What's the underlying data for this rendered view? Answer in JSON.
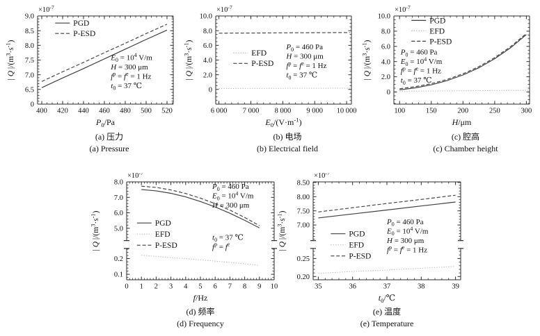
{
  "figure": {
    "background": "#ffffff",
    "colors": {
      "line_dark": "#3f3f3f",
      "line_light": "#b3b3b3",
      "axis": "#2b2b2b",
      "text": "#111111"
    }
  },
  "chart_data": [
    {
      "id": "a",
      "type": "line",
      "caption_cn": "(a) 压力",
      "caption_en": "(a) Pressure",
      "xlabel": "*P*_{0}/Pa",
      "ylabel": "| *Q* |/(m^{3}·s^{-1})",
      "scale_label": "×10^{-7}",
      "xlim": [
        396,
        526
      ],
      "xminor": 5,
      "xticks": [
        {
          "label": "400",
          "v": 400
        },
        {
          "label": "420",
          "v": 420
        },
        {
          "label": "440",
          "v": 440
        },
        {
          "label": "460",
          "v": 460
        },
        {
          "label": "480",
          "v": 480
        },
        {
          "label": "500",
          "v": 500
        },
        {
          "label": "520",
          "v": 520
        }
      ],
      "panels": [
        {
          "vlim": [
            6.0,
            9.0
          ],
          "minor": 0.1,
          "frac": [
            0,
            1
          ],
          "ticks": [
            {
              "label": "0",
              "v": 6.0
            },
            {
              "label": "6.5",
              "v": 6.5
            },
            {
              "label": "7.0",
              "v": 7.0
            },
            {
              "label": "7.5",
              "v": 7.5
            },
            {
              "label": "8.0",
              "v": 8.0
            },
            {
              "label": "8.5",
              "v": 8.5
            },
            {
              "label": "9.0",
              "v": 9.0
            }
          ]
        }
      ],
      "series": [
        {
          "name": "PGD",
          "style": "solid",
          "color": "#3f3f3f",
          "panel": 0,
          "x": [
            400,
            420,
            440,
            460,
            480,
            500,
            520
          ],
          "y": [
            6.56,
            6.89,
            7.21,
            7.54,
            7.87,
            8.2,
            8.52
          ]
        },
        {
          "name": "P-ESD",
          "style": "dashed",
          "color": "#3f3f3f",
          "panel": 0,
          "x": [
            400,
            420,
            440,
            460,
            480,
            500,
            520
          ],
          "y": [
            6.77,
            7.1,
            7.42,
            7.75,
            8.07,
            8.4,
            8.72
          ]
        }
      ],
      "legend": {
        "entries": [
          "PGD",
          "P-ESD"
        ],
        "pos": [
          0.13,
          0.08
        ]
      },
      "annotations": [
        {
          "pos": [
            0.54,
            0.42
          ],
          "lines": [
            "*E*_{0} = 10^{4} V/m",
            "*H* = 300 μm",
            "*f*^{p} = *f*^{e} = 1 Hz",
            "*t*_{0} = 37 ℃"
          ]
        }
      ]
    },
    {
      "id": "b",
      "type": "line",
      "caption_cn": "(b) 电场",
      "caption_en": "(b) Electrical field",
      "xlabel": "*E*_{0}/(V·m^{-1})",
      "ylabel": "| *Q* |/(m^{3}·s^{-1})",
      "scale_label": "×10^{-7}",
      "xlim": [
        5900,
        10150
      ],
      "xminor": 200,
      "xticks": [
        {
          "label": "6 000",
          "v": 6000
        },
        {
          "label": "7 000",
          "v": 7000
        },
        {
          "label": "8 000",
          "v": 8000
        },
        {
          "label": "9 000",
          "v": 9000
        },
        {
          "label": "10 000",
          "v": 10000
        }
      ],
      "panels": [
        {
          "vlim": [
            -2.0,
            10.0
          ],
          "minor": 0.5,
          "frac": [
            0,
            1
          ],
          "ticks": [
            {
              "label": "0",
              "v": 0
            },
            {
              "label": "2.0",
              "v": 2
            },
            {
              "label": "4.0",
              "v": 4
            },
            {
              "label": "6.0",
              "v": 6
            },
            {
              "label": "8.0",
              "v": 8
            },
            {
              "label": "10.0",
              "v": 10
            }
          ]
        }
      ],
      "series": [
        {
          "name": "EFD",
          "style": "dotted",
          "color": "#b3b3b3",
          "panel": 0,
          "x": [
            6000,
            7000,
            8000,
            9000,
            10100
          ],
          "y": [
            0.13,
            0.14,
            0.15,
            0.16,
            0.17
          ]
        },
        {
          "name": "P-ESD",
          "style": "dashed",
          "color": "#3f3f3f",
          "panel": 0,
          "x": [
            6000,
            7000,
            8000,
            9000,
            10100
          ],
          "y": [
            7.66,
            7.68,
            7.7,
            7.72,
            7.74
          ]
        }
      ],
      "legend": {
        "entries": [
          "EFD",
          "P-ESD"
        ],
        "pos": [
          0.13,
          0.42
        ]
      },
      "annotations": [
        {
          "pos": [
            0.52,
            0.3
          ],
          "lines": [
            "*P*_{0} = 460 Pa",
            "*H* = 300 μm",
            "*f*^{p} = *f*^{e} = 1 Hz",
            "*t*_{0} = 37 ℃"
          ]
        }
      ]
    },
    {
      "id": "c",
      "type": "line",
      "caption_cn": "(c) 腔高",
      "caption_en": "(c) Chamber height",
      "xlabel": "*H*/μm",
      "ylabel": "| *Q* |/(m^{3}·s^{-1})",
      "scale_label": "×10^{-7}",
      "xlim": [
        91,
        305
      ],
      "xminor": 10,
      "xticks": [
        {
          "label": "100",
          "v": 100
        },
        {
          "label": "150",
          "v": 150
        },
        {
          "label": "200",
          "v": 200
        },
        {
          "label": "250",
          "v": 250
        },
        {
          "label": "300",
          "v": 300
        }
      ],
      "panels": [
        {
          "vlim": [
            -1.6,
            10.0
          ],
          "minor": 0.5,
          "frac": [
            0,
            1
          ],
          "ticks": [
            {
              "label": "0",
              "v": 0
            },
            {
              "label": "2.0",
              "v": 2
            },
            {
              "label": "4.0",
              "v": 4
            },
            {
              "label": "6.0",
              "v": 6
            },
            {
              "label": "8.0",
              "v": 8
            },
            {
              "label": "10.0",
              "v": 10
            }
          ]
        }
      ],
      "series": [
        {
          "name": "PGD",
          "style": "solid",
          "color": "#3f3f3f",
          "panel": 0,
          "x": [
            100,
            125,
            150,
            175,
            200,
            225,
            250,
            275,
            300
          ],
          "y": [
            0.28,
            0.55,
            0.94,
            1.5,
            2.24,
            3.18,
            4.37,
            5.81,
            7.55
          ]
        },
        {
          "name": "EFD",
          "style": "dotted",
          "color": "#b3b3b3",
          "panel": 0,
          "x": [
            100,
            150,
            200,
            250,
            304
          ],
          "y": [
            0.1,
            0.13,
            0.16,
            0.19,
            0.22
          ]
        },
        {
          "name": "P-ESD",
          "style": "dashed",
          "color": "#3f3f3f",
          "panel": 0,
          "x": [
            100,
            125,
            150,
            175,
            200,
            225,
            250,
            275,
            300
          ],
          "y": [
            0.43,
            0.7,
            1.09,
            1.65,
            2.39,
            3.33,
            4.52,
            5.96,
            7.7
          ]
        }
      ],
      "legend": {
        "entries": [
          "PGD",
          "EFD",
          "P-ESD"
        ],
        "pos": [
          0.13,
          0.05
        ]
      },
      "annotations": [
        {
          "pos": [
            0.05,
            0.36
          ],
          "lines": [
            "*P*_{0} = 460 Pa",
            "*E*_{0} = 10^{4} V/m",
            "*f*^{p} = *f*^{e} = 1 Hz",
            "*t*_{0} = 37 ℃"
          ]
        }
      ]
    },
    {
      "id": "d",
      "type": "line",
      "caption_cn": "(d) 频率",
      "caption_en": "(d) Frequency",
      "xlabel": "*f*/Hz",
      "ylabel": "| *Q* |/(m^{3}·s^{-1})",
      "scale_label": "×10^{-7}",
      "xlim": [
        0,
        10
      ],
      "xminor": 0.2,
      "xticks": [
        {
          "label": "0",
          "v": 0
        },
        {
          "label": "1",
          "v": 1
        },
        {
          "label": "2",
          "v": 2
        },
        {
          "label": "3",
          "v": 3
        },
        {
          "label": "4",
          "v": 4
        },
        {
          "label": "5",
          "v": 5
        },
        {
          "label": "6",
          "v": 6
        },
        {
          "label": "7",
          "v": 7
        },
        {
          "label": "8",
          "v": 8
        },
        {
          "label": "9",
          "v": 9
        },
        {
          "label": "10",
          "v": 10
        }
      ],
      "panels": [
        {
          "vlim": [
            4.2,
            8.0
          ],
          "minor": 0.2,
          "frac": [
            0,
            0.6
          ],
          "ticks": [
            {
              "label": "5.0",
              "v": 5
            },
            {
              "label": "6.0",
              "v": 6
            },
            {
              "label": "7.0",
              "v": 7
            },
            {
              "label": "8.0",
              "v": 8
            }
          ]
        },
        {
          "vlim": [
            0.065,
            0.265
          ],
          "minor": 0.02,
          "frac": [
            0.68,
            1
          ],
          "ticks": [
            {
              "label": "0.1",
              "v": 0.1
            },
            {
              "label": "0.2",
              "v": 0.2
            }
          ]
        }
      ],
      "series": [
        {
          "name": "PGD",
          "style": "solid",
          "color": "#3f3f3f",
          "panel": 0,
          "x": [
            1,
            2,
            3,
            4,
            5,
            6,
            7,
            8,
            9
          ],
          "y": [
            7.5,
            7.42,
            7.26,
            7.03,
            6.73,
            6.38,
            5.97,
            5.51,
            5.02
          ]
        },
        {
          "name": "P-ESD",
          "style": "dashed",
          "color": "#3f3f3f",
          "panel": 0,
          "x": [
            1,
            2,
            3,
            4,
            5,
            6,
            7,
            8,
            9
          ],
          "y": [
            7.72,
            7.64,
            7.48,
            7.25,
            6.95,
            6.59,
            6.17,
            5.7,
            5.17
          ]
        },
        {
          "name": "EFD",
          "style": "dotted",
          "color": "#b3b3b3",
          "panel": 1,
          "x": [
            1,
            2,
            3,
            4,
            5,
            6,
            7,
            8,
            9
          ],
          "y": [
            0.222,
            0.214,
            0.207,
            0.2,
            0.192,
            0.184,
            0.176,
            0.167,
            0.157
          ]
        }
      ],
      "legend": {
        "entries": [
          "PGD",
          "EFD",
          "P-ESD"
        ],
        "pos": [
          0.07,
          0.42
        ]
      },
      "annotations": [
        {
          "pos": [
            0.58,
            0.0
          ],
          "lines": [
            "*P*_{0} = 460 Pa",
            "*E*_{0} = 10^{4} V/m",
            "*H* = 300 μm"
          ]
        },
        {
          "pos": [
            0.58,
            0.52
          ],
          "lines": [
            "*t*_{0} = 37 ℃",
            "*f*^{p} = *f*^{e}"
          ]
        }
      ]
    },
    {
      "id": "e",
      "type": "line",
      "caption_cn": "(e) 温度",
      "caption_en": "(e) Temperature",
      "xlabel": "*t*_{0}/℃",
      "ylabel": "| *Q* |/(m^{3}·s^{-1})",
      "scale_label": "×10^{-7}",
      "xlim": [
        34.85,
        39.15
      ],
      "xminor": 0.2,
      "xticks": [
        {
          "label": "35",
          "v": 35
        },
        {
          "label": "36",
          "v": 36
        },
        {
          "label": "37",
          "v": 37
        },
        {
          "label": "38",
          "v": 38
        },
        {
          "label": "39",
          "v": 39
        }
      ],
      "panels": [
        {
          "vlim": [
            6.45,
            8.52
          ],
          "minor": 0.1,
          "frac": [
            0,
            0.6
          ],
          "ticks": [
            {
              "label": "7.00",
              "v": 7.0
            },
            {
              "label": "7.50",
              "v": 7.5
            },
            {
              "label": "8.00",
              "v": 8.0
            },
            {
              "label": "8.50",
              "v": 8.5
            }
          ]
        },
        {
          "vlim": [
            0.191,
            0.278
          ],
          "minor": 0.01,
          "frac": [
            0.68,
            1
          ],
          "ticks": [
            {
              "label": "0.20",
              "v": 0.2
            },
            {
              "label": "0.25",
              "v": 0.25
            }
          ]
        }
      ],
      "series": [
        {
          "name": "PGD",
          "style": "solid",
          "color": "#3f3f3f",
          "panel": 0,
          "x": [
            35,
            36,
            37,
            38,
            39
          ],
          "y": [
            7.25,
            7.39,
            7.53,
            7.67,
            7.81
          ]
        },
        {
          "name": "P-ESD",
          "style": "dashed",
          "color": "#3f3f3f",
          "panel": 0,
          "x": [
            35,
            36,
            37,
            38,
            39
          ],
          "y": [
            7.46,
            7.61,
            7.76,
            7.9,
            8.05
          ]
        },
        {
          "name": "EFD",
          "style": "dotted",
          "color": "#b3b3b3",
          "panel": 1,
          "x": [
            35,
            36,
            37,
            38,
            39
          ],
          "y": [
            0.209,
            0.214,
            0.218,
            0.223,
            0.228
          ]
        }
      ],
      "legend": {
        "entries": [
          "PGD",
          "EFD",
          "P-ESD"
        ],
        "pos": [
          0.12,
          0.53
        ]
      },
      "annotations": [
        {
          "pos": [
            0.5,
            0.36
          ],
          "lines": [
            "*P*_{0} = 460 Pa",
            "*E*_{0} = 10^{4} V/m",
            "*H* = 300 μm",
            "*f*^{p} = *f*^{e} = 1 Hz"
          ]
        }
      ]
    }
  ]
}
